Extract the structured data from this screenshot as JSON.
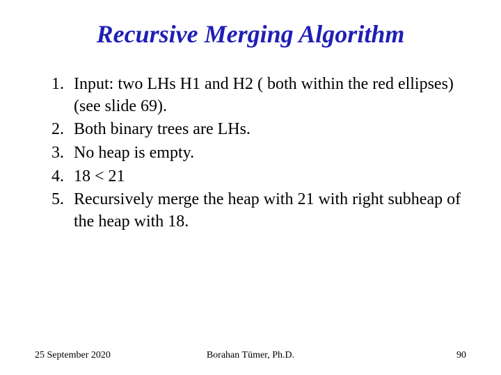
{
  "title": "Recursive Merging Algorithm",
  "title_color": "#1f1fb5",
  "title_fontsize": 36,
  "body_fontsize": 24,
  "body_color": "#000000",
  "background_color": "#ffffff",
  "items": [
    {
      "n": "1.",
      "text": "Input: two LHs H1 and H2 ( both within the red ellipses) (see slide 69)."
    },
    {
      "n": "2.",
      "text": "Both binary trees are LHs."
    },
    {
      "n": "3.",
      "text": "No heap is empty."
    },
    {
      "n": "4.",
      "text": "18 < 21"
    },
    {
      "n": "5.",
      "text": "Recursively merge the heap with 21 with right subheap of the heap with 18."
    }
  ],
  "footer": {
    "date": "25 September 2020",
    "author": "Borahan Tümer, Ph.D.",
    "page": "90",
    "fontsize": 14
  }
}
